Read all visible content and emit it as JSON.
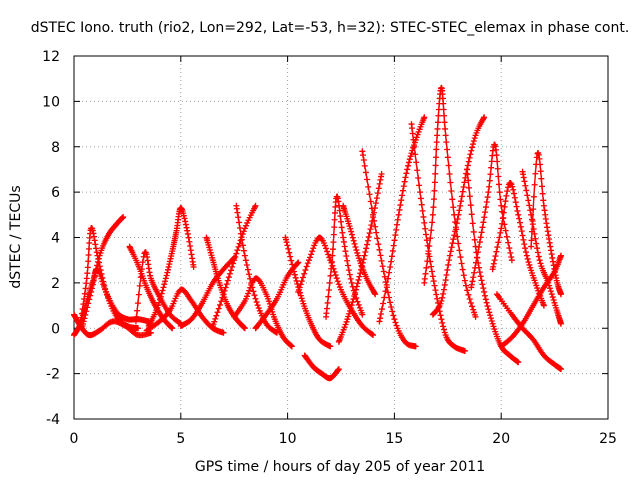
{
  "chart_data": {
    "type": "scatter",
    "title": "dSTEC Iono. truth (rio2, Lon=292, Lat=-53, h=32): STEC-STEC_elemax in phase cont.",
    "xlabel": "GPS time / hours of day 205 of year 2011",
    "ylabel": "dSTEC  / TECUs",
    "xlim": [
      0,
      25
    ],
    "ylim": [
      -4,
      12
    ],
    "xticks": [
      0,
      5,
      10,
      15,
      20,
      25
    ],
    "yticks": [
      -4,
      -2,
      0,
      2,
      4,
      6,
      8,
      10,
      12
    ],
    "grid": true,
    "marker": "+",
    "color": "#ff0000",
    "series": [
      {
        "x": [
          0.0,
          0.3,
          0.7,
          1.2,
          1.8,
          2.4,
          3.0,
          3.6
        ],
        "y": [
          0.6,
          0.1,
          -0.3,
          -0.1,
          0.3,
          0.1,
          -0.3,
          -0.2
        ]
      },
      {
        "x": [
          0.0,
          0.3,
          0.6,
          0.9,
          1.1,
          1.5,
          2.0,
          2.5,
          3.0,
          3.5
        ],
        "y": [
          -0.3,
          0.2,
          1.2,
          2.1,
          2.6,
          1.6,
          0.7,
          0.4,
          0.4,
          0.3
        ]
      },
      {
        "x": [
          0.3,
          0.6,
          0.8,
          1.1,
          1.5,
          2.0,
          2.5,
          3.0
        ],
        "y": [
          0.2,
          2.2,
          4.4,
          3.2,
          1.6,
          0.5,
          0.1,
          0.0
        ]
      },
      {
        "x": [
          0.4,
          0.8,
          1.2,
          1.6,
          2.0,
          2.3
        ],
        "y": [
          0.1,
          1.6,
          3.2,
          4.1,
          4.6,
          4.9
        ]
      },
      {
        "x": [
          2.6,
          3.0,
          3.4,
          3.8,
          4.2,
          4.6
        ],
        "y": [
          3.6,
          2.8,
          1.8,
          1.0,
          0.4,
          0.0
        ]
      },
      {
        "x": [
          2.9,
          3.3,
          3.6,
          4.0,
          4.5,
          5.0
        ],
        "y": [
          0.3,
          3.3,
          2.2,
          1.4,
          0.6,
          0.2
        ]
      },
      {
        "x": [
          3.5,
          3.9,
          4.3,
          4.6,
          4.8,
          5.0,
          5.3,
          5.6
        ],
        "y": [
          0.1,
          0.9,
          2.2,
          3.4,
          4.3,
          5.3,
          4.3,
          2.7
        ]
      },
      {
        "x": [
          3.4,
          4.0,
          4.5,
          5.0,
          5.5,
          6.0,
          6.5,
          7.0
        ],
        "y": [
          -0.1,
          0.3,
          0.8,
          1.7,
          1.2,
          0.5,
          0.0,
          -0.2
        ]
      },
      {
        "x": [
          5.0,
          5.5,
          6.0,
          6.5,
          7.0,
          7.5
        ],
        "y": [
          0.1,
          0.4,
          1.1,
          2.0,
          2.6,
          3.1
        ]
      },
      {
        "x": [
          6.2,
          6.5,
          6.8,
          7.2,
          7.6,
          8.0
        ],
        "y": [
          4.0,
          3.0,
          2.0,
          1.0,
          0.4,
          0.0
        ]
      },
      {
        "x": [
          6.5,
          7.0,
          7.5,
          8.0,
          8.5
        ],
        "y": [
          0.1,
          1.5,
          3.0,
          4.4,
          5.4
        ]
      },
      {
        "x": [
          7.6,
          8.0,
          8.5,
          9.0,
          9.5
        ],
        "y": [
          5.4,
          3.2,
          1.3,
          0.2,
          -0.2
        ]
      },
      {
        "x": [
          7.5,
          8.0,
          8.5,
          9.0,
          9.4,
          9.8,
          10.2
        ],
        "y": [
          0.5,
          1.2,
          2.2,
          1.5,
          0.4,
          -0.4,
          -0.8
        ]
      },
      {
        "x": [
          8.5,
          9.0,
          9.5,
          10.0,
          10.5
        ],
        "y": [
          0.0,
          0.6,
          1.3,
          2.3,
          2.9
        ]
      },
      {
        "x": [
          9.9,
          10.3,
          10.7,
          11.1,
          11.5,
          12.0
        ],
        "y": [
          4.0,
          2.5,
          1.2,
          0.2,
          -0.5,
          -0.8
        ]
      },
      {
        "x": [
          10.8,
          11.2,
          11.6,
          12.0,
          12.4
        ],
        "y": [
          -1.2,
          -1.7,
          -2.0,
          -2.2,
          -1.8
        ]
      },
      {
        "x": [
          10.5,
          11.0,
          11.5,
          12.0,
          12.5,
          13.0,
          13.5,
          14.0
        ],
        "y": [
          1.6,
          3.0,
          4.0,
          3.0,
          1.7,
          0.8,
          0.1,
          -0.3
        ]
      },
      {
        "x": [
          11.8,
          12.1,
          12.3,
          12.6,
          13.0,
          13.5
        ],
        "y": [
          0.5,
          3.2,
          5.8,
          4.0,
          2.0,
          0.6
        ]
      },
      {
        "x": [
          12.4,
          12.8,
          13.2,
          13.6,
          14.0,
          14.4
        ],
        "y": [
          -0.6,
          0.4,
          1.7,
          3.2,
          4.9,
          6.8
        ]
      },
      {
        "x": [
          12.6,
          12.9,
          13.3,
          13.7,
          14.1
        ],
        "y": [
          5.4,
          4.5,
          3.2,
          2.2,
          1.5
        ]
      },
      {
        "x": [
          13.5,
          14.0,
          14.5,
          15.0,
          15.5,
          16.0
        ],
        "y": [
          7.8,
          5.0,
          2.5,
          0.4,
          -0.6,
          -0.8
        ]
      },
      {
        "x": [
          14.3,
          14.8,
          15.2,
          15.6,
          16.0,
          16.4
        ],
        "y": [
          0.3,
          2.7,
          5.0,
          7.0,
          8.3,
          9.3
        ]
      },
      {
        "x": [
          15.8,
          16.2,
          16.6,
          17.0,
          17.4,
          17.8,
          18.3
        ],
        "y": [
          9.0,
          6.0,
          3.4,
          1.3,
          -0.3,
          -0.8,
          -1.0
        ]
      },
      {
        "x": [
          16.4,
          16.8,
          17.0,
          17.2,
          17.4,
          17.8,
          18.3,
          18.8
        ],
        "y": [
          2.0,
          5.0,
          8.5,
          10.6,
          8.5,
          5.0,
          2.1,
          0.5
        ]
      },
      {
        "x": [
          16.8,
          17.2,
          17.6,
          18.0,
          18.4,
          18.8,
          19.2
        ],
        "y": [
          0.6,
          1.2,
          3.2,
          5.0,
          7.0,
          8.5,
          9.3
        ]
      },
      {
        "x": [
          18.4,
          18.8,
          19.2,
          19.6,
          20.0,
          20.4,
          20.8
        ],
        "y": [
          7.0,
          3.6,
          1.6,
          0.2,
          -0.8,
          -1.2,
          -1.5
        ]
      },
      {
        "x": [
          18.6,
          19.0,
          19.4,
          19.7,
          20.0,
          20.5
        ],
        "y": [
          1.8,
          3.8,
          6.0,
          8.1,
          5.4,
          3.0
        ]
      },
      {
        "x": [
          19.6,
          20.0,
          20.4,
          20.8,
          21.2,
          21.6,
          22.0
        ],
        "y": [
          2.6,
          4.4,
          6.4,
          5.0,
          3.2,
          2.0,
          1.0
        ]
      },
      {
        "x": [
          21.0,
          21.4,
          21.8,
          22.2,
          22.6,
          22.8
        ],
        "y": [
          6.9,
          5.0,
          3.0,
          2.0,
          0.8,
          0.2
        ]
      },
      {
        "x": [
          21.4,
          21.7,
          22.0,
          22.3,
          22.6,
          22.8
        ],
        "y": [
          3.6,
          7.7,
          5.4,
          3.6,
          2.1,
          1.5
        ]
      },
      {
        "x": [
          19.8,
          20.5,
          21.0,
          21.5,
          22.0,
          22.5,
          22.8
        ],
        "y": [
          1.5,
          0.6,
          0.0,
          -0.5,
          -1.2,
          -1.6,
          -1.8
        ]
      },
      {
        "x": [
          20.0,
          20.5,
          21.0,
          21.5,
          22.0,
          22.5,
          22.8
        ],
        "y": [
          -0.8,
          -0.4,
          0.2,
          1.0,
          1.8,
          2.5,
          3.2
        ]
      }
    ]
  }
}
